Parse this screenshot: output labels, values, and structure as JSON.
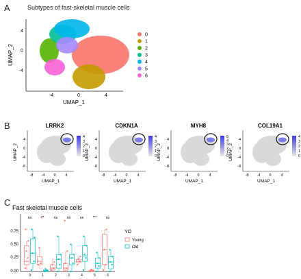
{
  "panels": {
    "A": {
      "letter": "A",
      "title": "Subtypes of fast-skeletal muscle cells",
      "xlabel": "UMAP_1",
      "ylabel": "UMAP_2",
      "x_ticks": [
        "-4",
        "0",
        "4"
      ],
      "y_ticks": [
        "4",
        "0",
        "-4"
      ],
      "legend": [
        {
          "label": "0",
          "color": "#F8766D"
        },
        {
          "label": "1",
          "color": "#C49A00"
        },
        {
          "label": "2",
          "color": "#53B400"
        },
        {
          "label": "3",
          "color": "#00C094"
        },
        {
          "label": "4",
          "color": "#00B6EB"
        },
        {
          "label": "5",
          "color": "#A58AFF"
        },
        {
          "label": "6",
          "color": "#FB61D7"
        }
      ]
    },
    "B": {
      "letter": "B",
      "genes": [
        {
          "name": "LRRK2",
          "scale": [
            "4",
            "3",
            "2",
            "1",
            "0"
          ]
        },
        {
          "name": "CDKN1A",
          "scale": [
            "4",
            "3",
            "2",
            "1",
            "0"
          ]
        },
        {
          "name": "MYH8",
          "scale": [
            "5",
            "4",
            "3",
            "2",
            "1",
            "0"
          ]
        },
        {
          "name": "COL19A1",
          "scale": [
            "4",
            "3",
            "2",
            "1",
            "0"
          ]
        }
      ],
      "xlabel": "UMAP_1",
      "ylabel": "UMAP_2",
      "x_ticks": [
        "-8",
        "-4",
        "0",
        "4"
      ],
      "y_ticks": [
        "4",
        "0",
        "-4",
        "-8"
      ],
      "scale_high_color": "#3A3AE0",
      "scale_low_color": "#E8E8E8"
    },
    "C": {
      "letter": "C",
      "title": "Fast skeletal muscle cells",
      "y_ticks": [
        "0.75",
        "0.50",
        "0.25",
        "0.00"
      ],
      "significance": [
        "ns",
        "**",
        "ns",
        "ns",
        "ns",
        "***",
        "ns"
      ],
      "legend_title": "YO",
      "legend": [
        {
          "label": "Young",
          "color": "#F8766D"
        },
        {
          "label": "Old",
          "color": "#00BFC4"
        }
      ]
    }
  },
  "chart_data": {
    "type": "box",
    "title": "Fast skeletal muscle cells",
    "categories": [
      "0",
      "1",
      "2",
      "3",
      "4",
      "5",
      "6"
    ],
    "ylim": [
      0,
      0.85
    ],
    "series": [
      {
        "name": "Young",
        "color": "#F8766D",
        "boxes": [
          {
            "q1": 0.1,
            "median": 0.15,
            "q3": 0.38,
            "lo": 0.02,
            "hi": 0.45
          },
          {
            "q1": 0.1,
            "median": 0.15,
            "q3": 0.22,
            "lo": 0.04,
            "hi": 0.35
          },
          {
            "q1": 0.02,
            "median": 0.05,
            "q3": 0.1,
            "lo": 0.0,
            "hi": 0.2
          },
          {
            "q1": 0.02,
            "median": 0.05,
            "q3": 0.12,
            "lo": 0.0,
            "hi": 0.3
          },
          {
            "q1": 0.13,
            "median": 0.15,
            "q3": 0.18,
            "lo": 0.1,
            "hi": 0.22
          },
          {
            "q1": 0.0,
            "median": 0.01,
            "q3": 0.02,
            "lo": 0.0,
            "hi": 0.03
          },
          {
            "q1": 0.1,
            "median": 0.32,
            "q3": 0.55,
            "lo": 0.02,
            "hi": 0.62
          }
        ]
      },
      {
        "name": "Old",
        "color": "#00BFC4",
        "boxes": [
          {
            "q1": 0.12,
            "median": 0.27,
            "q3": 0.48,
            "lo": 0.02,
            "hi": 0.62
          },
          {
            "q1": 0.0,
            "median": 0.01,
            "q3": 0.02,
            "lo": 0.0,
            "hi": 0.04
          },
          {
            "q1": 0.05,
            "median": 0.18,
            "q3": 0.25,
            "lo": 0.0,
            "hi": 0.52
          },
          {
            "q1": 0.1,
            "median": 0.2,
            "q3": 0.25,
            "lo": 0.0,
            "hi": 0.4
          },
          {
            "q1": 0.15,
            "median": 0.23,
            "q3": 0.38,
            "lo": 0.02,
            "hi": 0.52
          },
          {
            "q1": 0.05,
            "median": 0.12,
            "q3": 0.2,
            "lo": 0.0,
            "hi": 0.28
          },
          {
            "q1": 0.04,
            "median": 0.14,
            "q3": 0.22,
            "lo": 0.0,
            "hi": 0.32
          }
        ]
      }
    ],
    "points": {
      "Young": [
        [
          0.05,
          0.2,
          0.3,
          0.45,
          0.62
        ],
        [
          0.1,
          0.12,
          0.35,
          0.8
        ],
        [
          0.02,
          0.05,
          0.1,
          0.14
        ],
        [
          0.0,
          0.05,
          0.12,
          0.3,
          0.75
        ],
        [
          0.1,
          0.15,
          0.18,
          0.22
        ],
        [
          0.0,
          0.01,
          0.03
        ],
        [
          0.02,
          0.1,
          0.32,
          0.62
        ]
      ],
      "Old": [
        [
          0.02,
          0.15,
          0.27,
          0.5,
          0.62
        ],
        [
          0.0,
          0.02,
          0.04
        ],
        [
          0.0,
          0.1,
          0.18,
          0.25,
          0.52
        ],
        [
          0.0,
          0.12,
          0.2,
          0.25,
          0.4
        ],
        [
          0.02,
          0.2,
          0.25,
          0.38,
          0.52
        ],
        [
          0.0,
          0.08,
          0.12,
          0.2,
          0.28
        ],
        [
          0.0,
          0.1,
          0.14,
          0.22,
          0.32
        ]
      ]
    }
  }
}
